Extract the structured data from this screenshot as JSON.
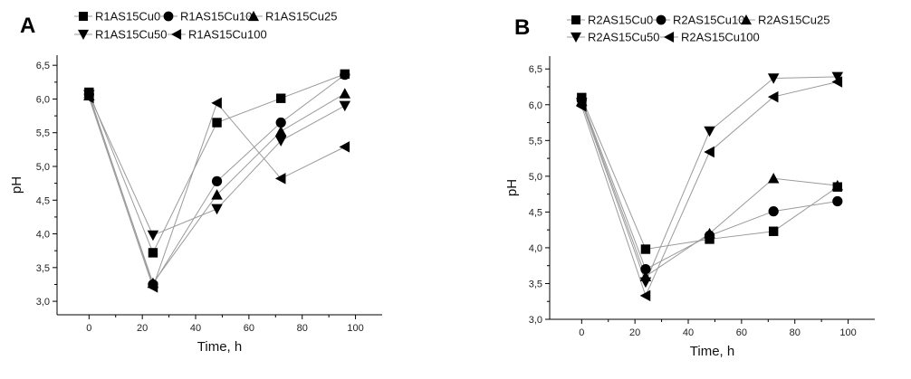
{
  "chart_data": [
    {
      "type": "line",
      "panel": "A",
      "xlabel": "Time, h",
      "ylabel": "pH",
      "xlim": [
        -12,
        110
      ],
      "ylim": [
        2.8,
        6.65
      ],
      "xticks": [
        0,
        20,
        40,
        60,
        80,
        100
      ],
      "yticks": [
        3.0,
        3.5,
        4.0,
        4.5,
        5.0,
        5.5,
        6.0,
        6.5
      ],
      "ytick_labels": [
        "3,0",
        "3,5",
        "4,0",
        "4,5",
        "5,0",
        "5,5",
        "6,0",
        "6,5"
      ],
      "grid": false,
      "legend": "top",
      "x": [
        0,
        24,
        48,
        72,
        96
      ],
      "series": [
        {
          "name": "R1AS15Cu0",
          "marker": "square",
          "values": [
            6.1,
            3.72,
            5.65,
            6.01,
            6.37
          ]
        },
        {
          "name": "R1AS15Cu10",
          "marker": "circle",
          "values": [
            6.07,
            3.25,
            4.78,
            5.65,
            6.36
          ]
        },
        {
          "name": "R1AS15Cu25",
          "marker": "triangle-up",
          "values": [
            6.05,
            3.27,
            4.58,
            5.52,
            6.08
          ]
        },
        {
          "name": "R1AS15Cu50",
          "marker": "triangle-down",
          "values": [
            6.06,
            3.98,
            4.37,
            5.38,
            5.9
          ]
        },
        {
          "name": "R1AS15Cu100",
          "marker": "triangle-left",
          "values": [
            6.02,
            3.21,
            5.94,
            4.82,
            5.29
          ]
        }
      ]
    },
    {
      "type": "line",
      "panel": "B",
      "xlabel": "Time, h",
      "ylabel": "pH",
      "xlim": [
        -12,
        110
      ],
      "ylim": [
        3.0,
        6.68
      ],
      "xticks": [
        0,
        20,
        40,
        60,
        80,
        100
      ],
      "yticks": [
        3.0,
        3.5,
        4.0,
        4.5,
        5.0,
        5.5,
        6.0,
        6.5
      ],
      "ytick_labels": [
        "3,0",
        "3,5",
        "4,0",
        "4,5",
        "5,0",
        "5,5",
        "6,0",
        "6,5"
      ],
      "grid": false,
      "legend": "top",
      "x": [
        0,
        24,
        48,
        72,
        96
      ],
      "series": [
        {
          "name": "R2AS15Cu0",
          "marker": "square",
          "values": [
            6.1,
            3.98,
            4.12,
            4.23,
            4.85
          ]
        },
        {
          "name": "R2AS15Cu10",
          "marker": "circle",
          "values": [
            6.07,
            3.7,
            4.17,
            4.51,
            4.65
          ]
        },
        {
          "name": "R2AS15Cu25",
          "marker": "triangle-up",
          "values": [
            6.05,
            3.6,
            4.2,
            4.97,
            4.87
          ]
        },
        {
          "name": "R2AS15Cu50",
          "marker": "triangle-down",
          "values": [
            6.03,
            3.52,
            5.63,
            6.37,
            6.39
          ]
        },
        {
          "name": "R2AS15Cu100",
          "marker": "triangle-left",
          "values": [
            5.98,
            3.33,
            5.34,
            6.11,
            6.32
          ]
        }
      ]
    }
  ]
}
